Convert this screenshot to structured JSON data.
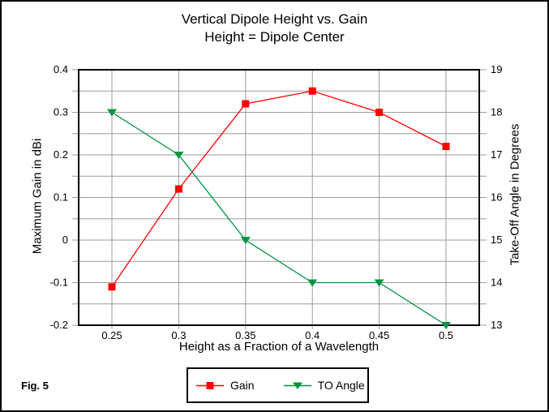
{
  "window": {
    "fig_label": "Fig. 5"
  },
  "chart_data": {
    "type": "line",
    "title": "Vertical Dipole Height vs. Gain — Height = Dipole Center",
    "title_lines": [
      "Vertical Dipole Height vs. Gain",
      "Height = Dipole Center"
    ],
    "xlabel": "Height as a Fraction of a Wavelength",
    "x": [
      0.25,
      0.3,
      0.35,
      0.4,
      0.45,
      0.5
    ],
    "x_tick_labels": [
      "0.25",
      "0.3",
      "0.35",
      "0.4",
      "0.45",
      "0.5"
    ],
    "axes": {
      "left": {
        "label": "Maximum Gain in dBi",
        "min": -0.2,
        "max": 0.4,
        "minor_step": 0.05,
        "tick_labels": [
          "0.4",
          "0.3",
          "0.2",
          "0.1",
          "0",
          "-0.1",
          "-0.2"
        ]
      },
      "right": {
        "label": "Take-Off Angle in Degrees",
        "min": 13,
        "max": 19,
        "minor_step": 0.5,
        "tick_labels": [
          "19",
          "18",
          "17",
          "16",
          "15",
          "14",
          "13"
        ]
      }
    },
    "series": [
      {
        "name": "Gain",
        "axis": "left",
        "color": "#FF0000",
        "marker": "square",
        "values": [
          -0.11,
          0.12,
          0.32,
          0.35,
          0.3,
          0.22
        ]
      },
      {
        "name": "TO Angle",
        "axis": "right",
        "color": "#009440",
        "marker": "triangle-down",
        "values": [
          18,
          17,
          15,
          14,
          14,
          13
        ]
      }
    ],
    "grid": true,
    "grid_color": "#9B9B9B",
    "legend_position": "bottom-center",
    "background": "#FFFFFF"
  }
}
